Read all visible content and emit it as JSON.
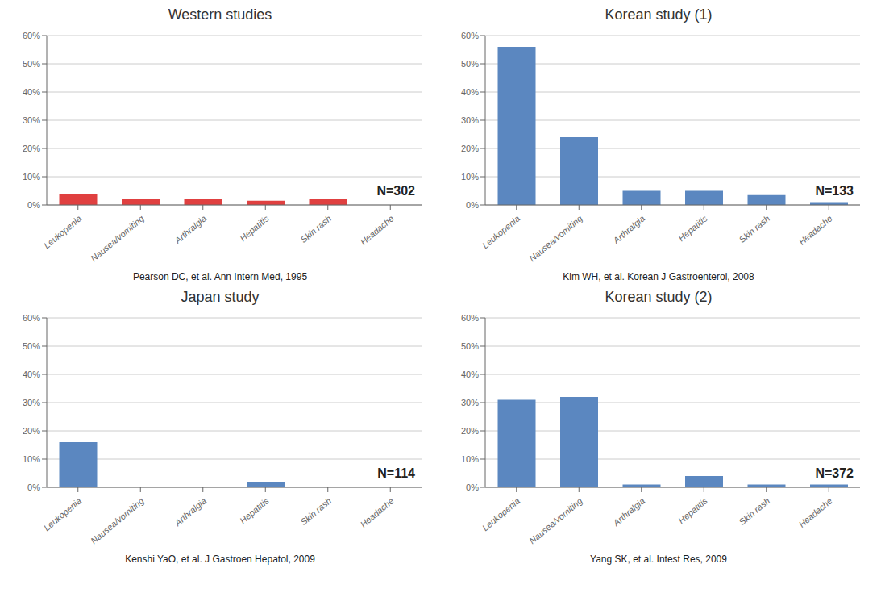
{
  "chart_data": [
    {
      "type": "bar",
      "title": "Western studies",
      "categories": [
        "Leukopenia",
        "Nausea/vomiting",
        "Arthralgia",
        "Hepatitis",
        "Skin rash",
        "Headache"
      ],
      "values": [
        4.0,
        2.0,
        2.0,
        1.5,
        2.0,
        0.0
      ],
      "color": "#e04040",
      "ylim": [
        0,
        60
      ],
      "yticks": [
        {
          "value": 0,
          "label": "0%"
        },
        {
          "value": 10,
          "label": "10%"
        },
        {
          "value": 20,
          "label": "20%"
        },
        {
          "value": 30,
          "label": "30%"
        },
        {
          "value": 40,
          "label": "40%"
        },
        {
          "value": 50,
          "label": "50%"
        },
        {
          "value": 60,
          "label": "60%"
        }
      ],
      "grid": true,
      "annotations": [
        "N=302",
        "Pearson DC, et al. Ann Intern Med, 1995"
      ]
    },
    {
      "type": "bar",
      "title": "Korean study (1)",
      "categories": [
        "Leukopenia",
        "Nausea/vomiting",
        "Arthralgia",
        "Hepatitis",
        "Skin rash",
        "Headache"
      ],
      "values": [
        56.0,
        24.0,
        5.0,
        5.0,
        3.5,
        1.0
      ],
      "color": "#5b87c0",
      "ylim": [
        0,
        60
      ],
      "yticks": [
        {
          "value": 0,
          "label": "0%"
        },
        {
          "value": 10,
          "label": "10%"
        },
        {
          "value": 20,
          "label": "20%"
        },
        {
          "value": 30,
          "label": "30%"
        },
        {
          "value": 40,
          "label": "40%"
        },
        {
          "value": 50,
          "label": "50%"
        },
        {
          "value": 60,
          "label": "60%"
        }
      ],
      "grid": true,
      "annotations": [
        "N=133",
        "Kim WH, et al. Korean J Gastroenterol, 2008"
      ]
    },
    {
      "type": "bar",
      "title": "Japan study",
      "categories": [
        "Leukopenia",
        "Nausea/vomiting",
        "Arthralgia",
        "Hepatitis",
        "Skin rash",
        "Headache"
      ],
      "values": [
        16.0,
        0.0,
        0.0,
        2.0,
        0.0,
        0.0
      ],
      "color": "#5b87c0",
      "ylim": [
        0,
        60
      ],
      "yticks": [
        {
          "value": 0,
          "label": "0%"
        },
        {
          "value": 10,
          "label": "10%"
        },
        {
          "value": 20,
          "label": "20%"
        },
        {
          "value": 30,
          "label": "30%"
        },
        {
          "value": 40,
          "label": "40%"
        },
        {
          "value": 50,
          "label": "50%"
        },
        {
          "value": 60,
          "label": "60%"
        }
      ],
      "grid": true,
      "annotations": [
        "N=114",
        "Kenshi YaO, et al. J Gastroen Hepatol, 2009"
      ]
    },
    {
      "type": "bar",
      "title": "Korean study (2)",
      "categories": [
        "Leukopenia",
        "Nausea/vomiting",
        "Arthralgia",
        "Hepatitis",
        "Skin rash",
        "Headache"
      ],
      "values": [
        31.0,
        32.0,
        1.0,
        4.0,
        1.0,
        1.0
      ],
      "color": "#5b87c0",
      "ylim": [
        0,
        60
      ],
      "yticks": [
        {
          "value": 0,
          "label": "0%"
        },
        {
          "value": 10,
          "label": "10%"
        },
        {
          "value": 20,
          "label": "20%"
        },
        {
          "value": 30,
          "label": "30%"
        },
        {
          "value": 40,
          "label": "40%"
        },
        {
          "value": 50,
          "label": "50%"
        },
        {
          "value": 60,
          "label": "60%"
        }
      ],
      "grid": true,
      "annotations": [
        "N=372",
        "Yang SK, et al. Intest Res, 2009"
      ]
    }
  ]
}
